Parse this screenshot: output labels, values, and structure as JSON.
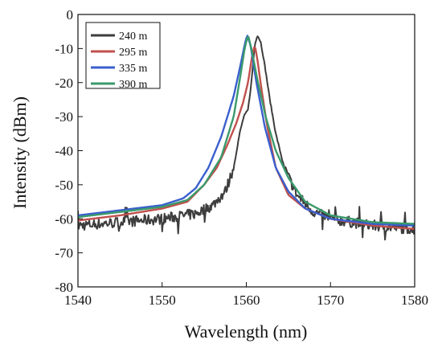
{
  "chart_data": {
    "type": "line",
    "title": "",
    "xlabel": "Wavelength (nm)",
    "ylabel": "Intensity (dBm)",
    "xlim": [
      1540,
      1580
    ],
    "ylim": [
      -80,
      0
    ],
    "xticks": [
      1540,
      1550,
      1560,
      1570,
      1580
    ],
    "yticks": [
      0,
      -10,
      -20,
      -30,
      -40,
      -50,
      -60,
      -70,
      -80
    ],
    "grid": false,
    "legend_position": "top-left",
    "series": [
      {
        "name": "240 m",
        "color": "#3d3d3d",
        "noisy": true,
        "points": [
          [
            1540,
            -62
          ],
          [
            1545,
            -61
          ],
          [
            1550,
            -60
          ],
          [
            1554,
            -58.5
          ],
          [
            1556,
            -56
          ],
          [
            1557.5,
            -52
          ],
          [
            1558.5,
            -45
          ],
          [
            1559.2,
            -35
          ],
          [
            1559.7,
            -30
          ],
          [
            1560.2,
            -28
          ],
          [
            1560.6,
            -20
          ],
          [
            1561.0,
            -9
          ],
          [
            1561.3,
            -6
          ],
          [
            1561.7,
            -8
          ],
          [
            1562.2,
            -15
          ],
          [
            1562.8,
            -25
          ],
          [
            1563.5,
            -35
          ],
          [
            1564.5,
            -45
          ],
          [
            1566,
            -53
          ],
          [
            1568,
            -58
          ],
          [
            1570,
            -60
          ],
          [
            1575,
            -62
          ],
          [
            1580,
            -63
          ]
        ]
      },
      {
        "name": "295 m",
        "color": "#c0504d",
        "noisy": false,
        "points": [
          [
            1540,
            -60.5
          ],
          [
            1545,
            -59
          ],
          [
            1550,
            -57
          ],
          [
            1553,
            -55
          ],
          [
            1555,
            -50
          ],
          [
            1556.5,
            -45
          ],
          [
            1557.8,
            -38
          ],
          [
            1558.8,
            -32
          ],
          [
            1559.6,
            -26
          ],
          [
            1560.2,
            -20
          ],
          [
            1560.7,
            -12
          ],
          [
            1561.0,
            -9
          ],
          [
            1561.3,
            -13
          ],
          [
            1561.8,
            -22
          ],
          [
            1562.5,
            -33
          ],
          [
            1563.5,
            -45
          ],
          [
            1565,
            -53
          ],
          [
            1567,
            -57
          ],
          [
            1570,
            -60
          ],
          [
            1575,
            -62
          ],
          [
            1580,
            -63
          ]
        ]
      },
      {
        "name": "335 m",
        "color": "#3a5fcd",
        "noisy": false,
        "points": [
          [
            1540,
            -59
          ],
          [
            1545,
            -57.5
          ],
          [
            1550,
            -56
          ],
          [
            1552.5,
            -54
          ],
          [
            1554,
            -51
          ],
          [
            1555.5,
            -45
          ],
          [
            1557,
            -36
          ],
          [
            1558.5,
            -24
          ],
          [
            1559.3,
            -15
          ],
          [
            1559.8,
            -9
          ],
          [
            1560.1,
            -6
          ],
          [
            1560.5,
            -9
          ],
          [
            1561.2,
            -20
          ],
          [
            1562.2,
            -33
          ],
          [
            1563.5,
            -45
          ],
          [
            1565,
            -52
          ],
          [
            1567,
            -57
          ],
          [
            1570,
            -60
          ],
          [
            1575,
            -61.5
          ],
          [
            1580,
            -62
          ]
        ]
      },
      {
        "name": "390 m",
        "color": "#3a9a6b",
        "noisy": false,
        "points": [
          [
            1540,
            -59.5
          ],
          [
            1545,
            -58
          ],
          [
            1550,
            -56.5
          ],
          [
            1553,
            -54.5
          ],
          [
            1555,
            -50
          ],
          [
            1557,
            -42
          ],
          [
            1558.5,
            -30
          ],
          [
            1559.3,
            -18
          ],
          [
            1559.8,
            -10
          ],
          [
            1560.2,
            -6
          ],
          [
            1560.6,
            -10
          ],
          [
            1561.3,
            -19
          ],
          [
            1562.3,
            -30
          ],
          [
            1563.5,
            -40
          ],
          [
            1565,
            -48
          ],
          [
            1567,
            -55
          ],
          [
            1570,
            -59
          ],
          [
            1575,
            -61
          ],
          [
            1580,
            -61.5
          ]
        ]
      }
    ]
  }
}
